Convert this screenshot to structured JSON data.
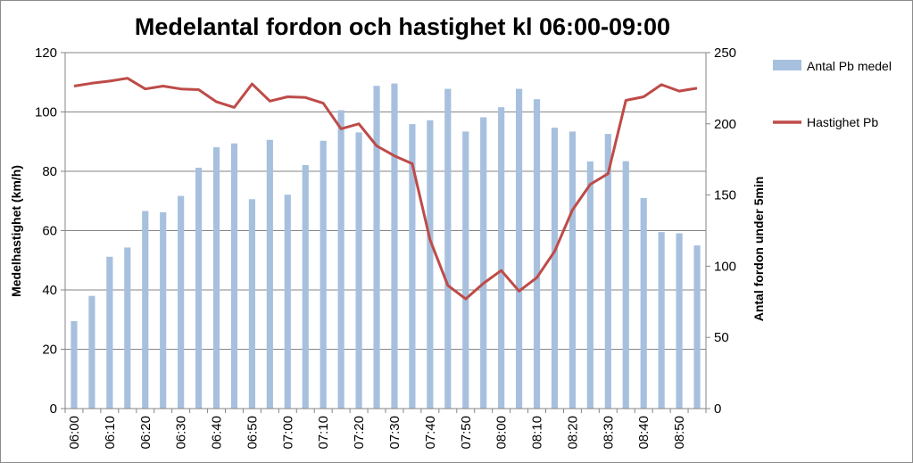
{
  "chart_data": {
    "type": "bar+line",
    "title": "Medelantal fordon och hastighet  kl 06:00-09:00",
    "ylabel_left": "Medelhastighet (km/h)",
    "ylabel_right": "Antal fordon under 5min",
    "ylim_left": [
      0,
      120
    ],
    "yticks_left": [
      "0",
      "20",
      "40",
      "60",
      "80",
      "100",
      "120"
    ],
    "ylim_right": [
      0,
      250
    ],
    "yticks_right": [
      "0",
      "50",
      "100",
      "150",
      "200",
      "250"
    ],
    "grid": true,
    "legend_position": "right",
    "categories": [
      "06:00",
      "06:05",
      "06:10",
      "06:15",
      "06:20",
      "06:25",
      "06:30",
      "06:35",
      "06:40",
      "06:45",
      "06:50",
      "06:55",
      "07:00",
      "07:05",
      "07:10",
      "07:15",
      "07:20",
      "07:25",
      "07:30",
      "07:35",
      "07:40",
      "07:45",
      "07:50",
      "07:55",
      "08:00",
      "08:05",
      "08:10",
      "08:15",
      "08:20",
      "08:25",
      "08:30",
      "08:35",
      "08:40",
      "08:45",
      "08:50",
      "08:55"
    ],
    "xtick_labels": [
      "06:00",
      "06:10",
      "06:20",
      "06:30",
      "06:40",
      "06:50",
      "07:00",
      "07:10",
      "07:20",
      "07:30",
      "07:40",
      "07:50",
      "08:00",
      "08:10",
      "08:20",
      "08:30",
      "08:40",
      "08:50"
    ],
    "series": [
      {
        "name": "Antal Pb medel",
        "kind": "bar",
        "axis": "left",
        "color": "#a7c0de",
        "values": [
          29.5,
          38,
          51.2,
          54.3,
          66.6,
          66.2,
          71.7,
          81.2,
          88.1,
          89.4,
          70.6,
          90.6,
          72.1,
          82.1,
          90.3,
          100.6,
          93.1,
          108.8,
          109.6,
          95.9,
          97.2,
          107.8,
          93.4,
          98.2,
          101.6,
          107.8,
          104.3,
          94.7,
          93.4,
          83.3,
          92.6,
          83.4,
          71,
          59.5,
          59.1,
          55
        ]
      },
      {
        "name": "Hastighet Pb",
        "kind": "line",
        "axis": "right",
        "color": "#be4b48",
        "values": [
          226.5,
          228.5,
          230,
          232,
          224.5,
          226.5,
          224.5,
          224,
          215.5,
          211.5,
          228,
          216,
          219,
          218.5,
          214.5,
          196.5,
          200,
          184.5,
          177.5,
          172,
          118.5,
          86.5,
          77,
          88,
          97,
          82.5,
          92,
          110.5,
          139.5,
          157.5,
          165,
          216.5,
          219,
          227.5,
          223,
          225
        ]
      }
    ]
  }
}
